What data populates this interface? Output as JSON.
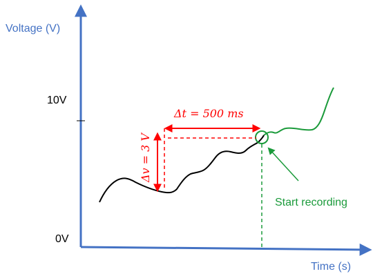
{
  "y_axis": {
    "label": "Voltage (V)"
  },
  "x_axis": {
    "label": "Time (s)"
  },
  "ticks": {
    "upper": "10V",
    "lower": "0V"
  },
  "annotations": {
    "delta_t": "Δt = 500 ms",
    "delta_v": "Δv = 3 V",
    "start": "Start recording"
  },
  "colors": {
    "axis": "#4472c4",
    "measure": "#ff0000",
    "recording": "#1a9a3a",
    "signal_before": "#000000"
  }
}
